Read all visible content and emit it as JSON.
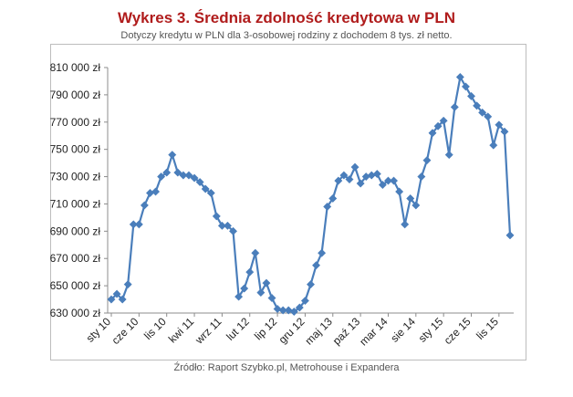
{
  "chart_data": {
    "type": "line",
    "title": "Wykres 3. Średnia zdolność kredytowa w PLN",
    "subtitle": "Dotyczy kredytu w PLN dla 3-osobowej rodziny z dochodem 8 tys. zł netto.",
    "source": "Źródło: Raport Szybko.pl, Metrohouse i Expandera",
    "xlabel": "",
    "ylabel": "",
    "ylim": [
      630000,
      810000
    ],
    "y_ticks": [
      630000,
      650000,
      670000,
      690000,
      710000,
      730000,
      750000,
      770000,
      790000,
      810000
    ],
    "y_tick_labels": [
      "630 000 zł",
      "650 000 zł",
      "670 000 zł",
      "690 000 zł",
      "710 000 zł",
      "730 000 zł",
      "750 000 zł",
      "770 000 zł",
      "790 000 zł",
      "810 000 zł"
    ],
    "grid": false,
    "legend": "none",
    "x_tick_labels": [
      "sty 10",
      "cze 10",
      "lis 10",
      "kwi 11",
      "wrz 11",
      "lut 12",
      "lip 12",
      "gru 12",
      "maj 13",
      "paź 13",
      "mar 14",
      "sie 14",
      "sty 15",
      "cze 15",
      "lis 15"
    ],
    "x_tick_indices": [
      0,
      5,
      10,
      15,
      20,
      25,
      30,
      35,
      40,
      45,
      50,
      55,
      60,
      65,
      70
    ],
    "series": [
      {
        "color": "#4a7ebb",
        "values": [
          640000,
          644000,
          640000,
          651000,
          695000,
          695000,
          709000,
          718000,
          719000,
          730000,
          733000,
          746000,
          733000,
          731000,
          731000,
          729000,
          726000,
          721000,
          718000,
          701000,
          694000,
          694000,
          690000,
          642000,
          648000,
          660000,
          674000,
          645000,
          652000,
          641000,
          633000,
          632000,
          632000,
          631000,
          634000,
          639000,
          651000,
          665000,
          674000,
          708000,
          714000,
          727000,
          731000,
          728000,
          737000,
          725000,
          730000,
          731000,
          732000,
          724000,
          727000,
          727000,
          719000,
          695000,
          714000,
          709000,
          730000,
          742000,
          762000,
          767000,
          771000,
          746000,
          781000,
          803000,
          796000,
          789000,
          782000,
          777000,
          774000,
          753000,
          768000,
          763000,
          687000
        ]
      }
    ]
  }
}
